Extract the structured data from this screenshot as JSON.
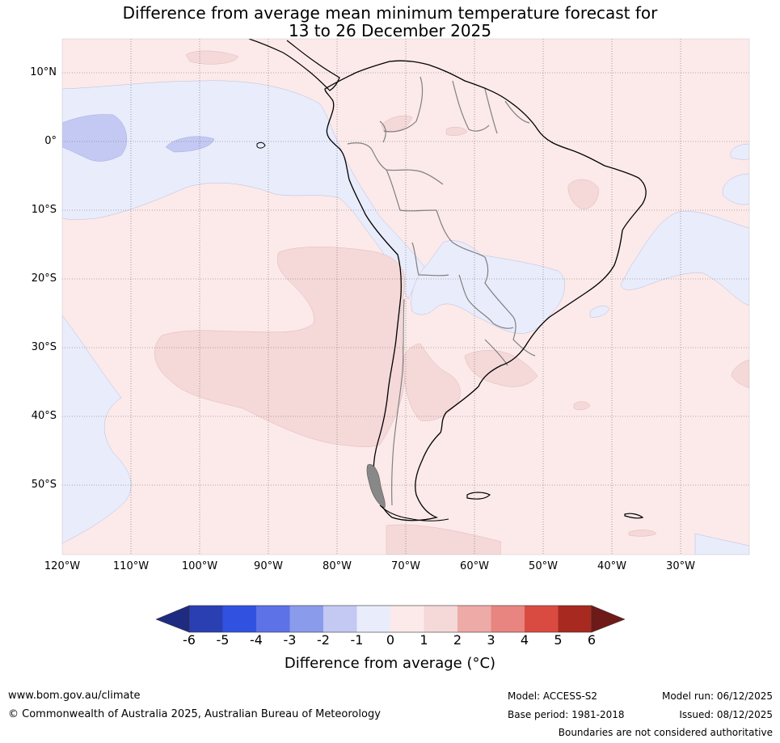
{
  "title": {
    "line1": "Difference from average mean minimum temperature forecast for",
    "line2": "13 to 26 December 2025"
  },
  "lat_labels": [
    "10°N",
    "0°",
    "10°S",
    "20°S",
    "30°S",
    "40°S",
    "50°S"
  ],
  "lon_labels": [
    "120°W",
    "110°W",
    "100°W",
    "90°W",
    "80°W",
    "70°W",
    "60°W",
    "50°W",
    "40°W",
    "30°W"
  ],
  "colors": {
    "neutral_warm": "#fbeae9",
    "cool_1": "#e9ecfb",
    "cool_2": "#c3c9f3",
    "warm_2": "#f5d8d8",
    "land_line": "#000000",
    "border_line": "#808080"
  },
  "colorbar": {
    "title": "Difference from average (°C)",
    "ticks": [
      "-6",
      "-5",
      "-4",
      "-3",
      "-2",
      "-1",
      "0",
      "1",
      "2",
      "3",
      "4",
      "5",
      "6"
    ],
    "colors": [
      "#1f2b80",
      "#2a3fb2",
      "#3152e0",
      "#5c72e6",
      "#8a9bec",
      "#c3c9f3",
      "#e9ecfb",
      "#fbeae9",
      "#f5d8d8",
      "#eeaaa7",
      "#e88580",
      "#d94b40",
      "#a8291f",
      "#6e1a18"
    ]
  },
  "footer": {
    "website": "www.bom.gov.au/climate",
    "copyright": "© Commonwealth of Australia 2025, Australian Bureau of Meteorology",
    "model": "Model: ACCESS-S2",
    "base_period": "Base period: 1981-2018",
    "model_run": "Model run: 06/12/2025",
    "issued": "Issued: 08/12/2025",
    "disclaimer": "Boundaries are not considered authoritative"
  }
}
